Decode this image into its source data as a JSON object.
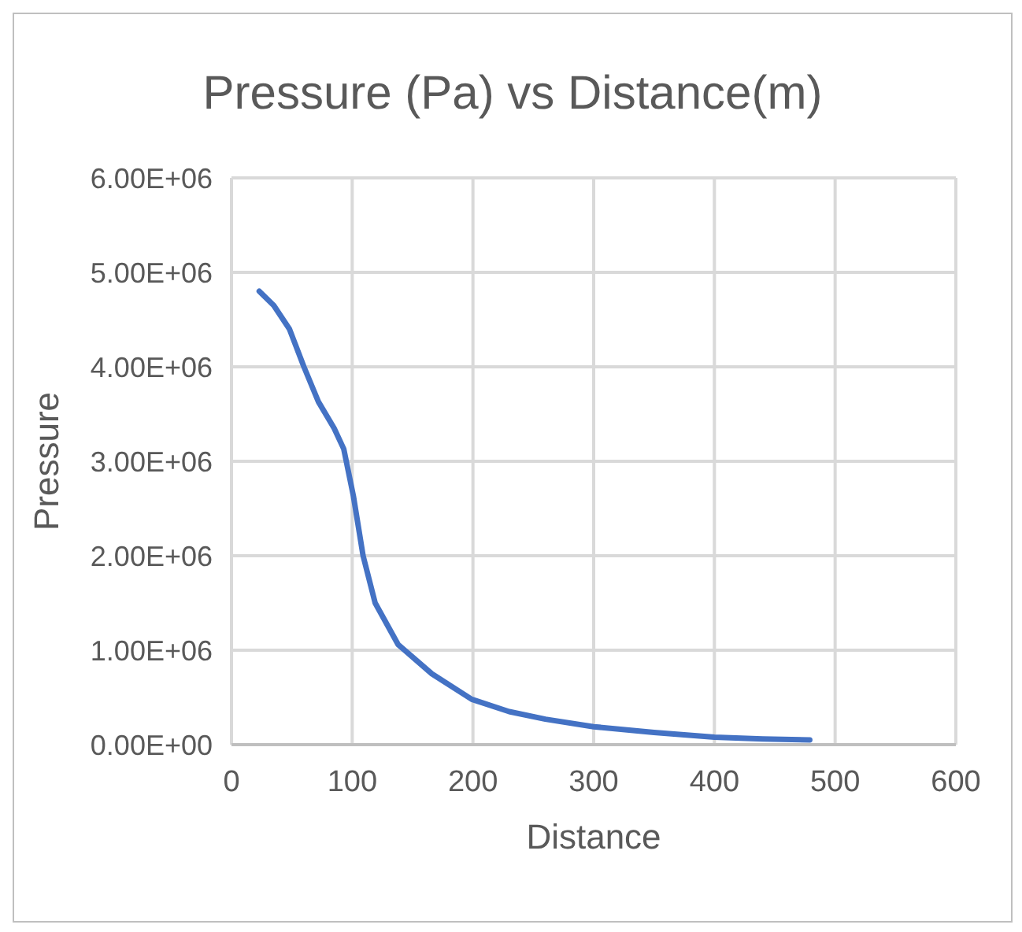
{
  "chart_data": {
    "type": "line",
    "title": "Pressure (Pa) vs Distance(m)",
    "xlabel": "Distance",
    "ylabel": "Pressure",
    "x": [
      23,
      35,
      48,
      60,
      72,
      85,
      93,
      101,
      109,
      119,
      138,
      166,
      199,
      230,
      260,
      300,
      350,
      400,
      440,
      479
    ],
    "series": [
      {
        "color": "#4472c4",
        "values": [
          4800000,
          4650000,
          4400000,
          4000000,
          3630000,
          3350000,
          3130000,
          2630000,
          2000000,
          1500000,
          1060000,
          750000,
          480000,
          350000,
          270000,
          190000,
          130000,
          80000,
          60000,
          50000
        ]
      }
    ],
    "xlim": [
      0,
      600
    ],
    "xticks": [
      0,
      100,
      200,
      300,
      400,
      500,
      600
    ],
    "ylim": [
      0,
      6000000
    ],
    "yticks": [
      {
        "value": 0,
        "label": "0.00E+00"
      },
      {
        "value": 1000000,
        "label": "1.00E+06"
      },
      {
        "value": 2000000,
        "label": "2.00E+06"
      },
      {
        "value": 3000000,
        "label": "3.00E+06"
      },
      {
        "value": 4000000,
        "label": "4.00E+06"
      },
      {
        "value": 5000000,
        "label": "5.00E+06"
      },
      {
        "value": 6000000,
        "label": "6.00E+06"
      }
    ],
    "grid": true,
    "marker": "none",
    "line_style": "solid"
  }
}
